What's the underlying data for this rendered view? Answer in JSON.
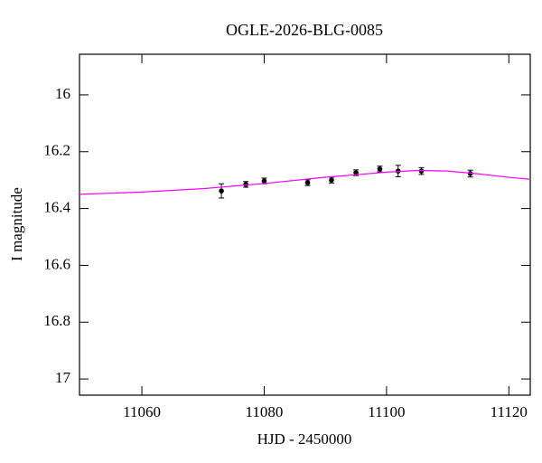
{
  "chart_data": {
    "type": "scatter",
    "title": "OGLE-2026-BLG-0085",
    "xlabel": "HJD - 2450000",
    "ylabel": "I magnitude",
    "xlim": [
      11049.8,
      11123.5
    ],
    "ylim": [
      15.857,
      17.057
    ],
    "y_inverted": true,
    "xticks": [
      11060,
      11080,
      11100,
      11120
    ],
    "yticks": [
      16,
      16.2,
      16.4,
      16.6,
      16.8,
      17
    ],
    "series": [
      {
        "type": "scatter",
        "color": "#000000",
        "x": [
          11073.0,
          11077.0,
          11080.0,
          11087.1,
          11091.0,
          11095.0,
          11098.9,
          11101.9,
          11105.7,
          11113.7
        ],
        "values": [
          16.338,
          16.315,
          16.303,
          16.309,
          16.3,
          16.274,
          16.261,
          16.268,
          16.268,
          16.277
        ],
        "errors": [
          0.025,
          0.01,
          0.01,
          0.01,
          0.01,
          0.01,
          0.01,
          0.02,
          0.012,
          0.012
        ]
      },
      {
        "type": "line",
        "color": "#ff00ff",
        "x": [
          11049.8,
          11060,
          11070,
          11080,
          11090,
          11100,
          11105,
          11110,
          11115,
          11120,
          11123.5
        ],
        "values": [
          16.35,
          16.342,
          16.33,
          16.312,
          16.29,
          16.272,
          16.266,
          16.268,
          16.278,
          16.29,
          16.297
        ]
      }
    ]
  }
}
